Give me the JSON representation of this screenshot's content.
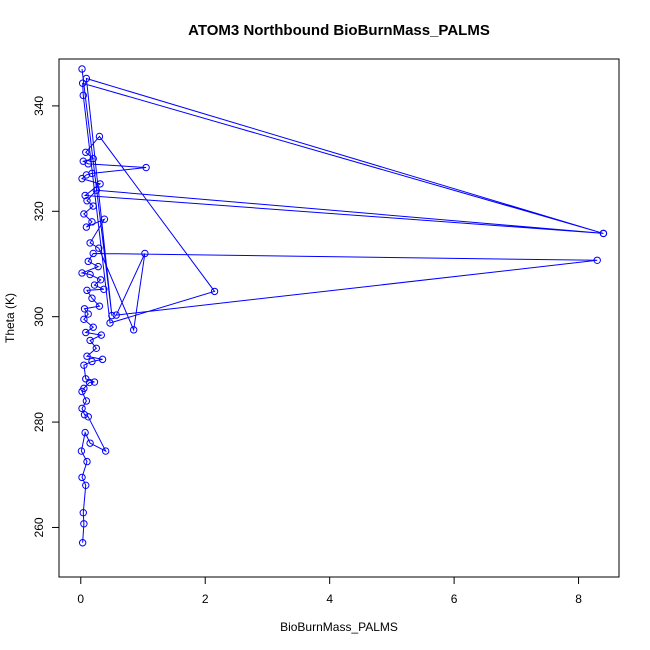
{
  "chart_data": {
    "type": "line",
    "title": "ATOM3 Northbound BioBurnMass_PALMS",
    "xlabel": "BioBurnMass_PALMS",
    "ylabel": "Theta (K)",
    "xlim": [
      -0.35,
      8.65
    ],
    "ylim": [
      250.6,
      348.9
    ],
    "xticks": [
      0,
      2,
      4,
      6,
      8
    ],
    "yticks": [
      260,
      280,
      300,
      320,
      340
    ],
    "grid": false,
    "legend": "none",
    "series": [
      {
        "color": "#0000ff",
        "marker": "open-circle",
        "points": [
          [
            0.03,
            257.1
          ],
          [
            0.05,
            260.7
          ],
          [
            0.04,
            262.8
          ],
          [
            0.08,
            268.0
          ],
          [
            0.02,
            269.5
          ],
          [
            0.1,
            272.5
          ],
          [
            0.01,
            274.5
          ],
          [
            0.07,
            278.0
          ],
          [
            0.15,
            276.0
          ],
          [
            0.4,
            274.5
          ],
          [
            0.12,
            281.0
          ],
          [
            0.06,
            281.4
          ],
          [
            0.02,
            282.6
          ],
          [
            0.09,
            284.0
          ],
          [
            0.02,
            285.8
          ],
          [
            0.05,
            286.4
          ],
          [
            0.14,
            287.5
          ],
          [
            0.22,
            287.6
          ],
          [
            0.08,
            288.2
          ],
          [
            0.05,
            290.8
          ],
          [
            0.18,
            291.5
          ],
          [
            0.35,
            291.9
          ],
          [
            0.1,
            292.5
          ],
          [
            0.25,
            294.0
          ],
          [
            0.15,
            295.5
          ],
          [
            0.33,
            296.5
          ],
          [
            0.08,
            297.0
          ],
          [
            0.2,
            298.0
          ],
          [
            0.05,
            299.5
          ],
          [
            0.12,
            300.5
          ],
          [
            0.06,
            301.5
          ],
          [
            0.3,
            302.0
          ],
          [
            0.18,
            303.5
          ],
          [
            0.1,
            305.0
          ],
          [
            0.37,
            305.2
          ],
          [
            0.22,
            306.0
          ],
          [
            0.32,
            307.0
          ],
          [
            0.15,
            308.0
          ],
          [
            0.02,
            308.3
          ],
          [
            0.28,
            309.5
          ],
          [
            0.12,
            310.5
          ],
          [
            0.2,
            312.0
          ],
          [
            8.3,
            310.7
          ],
          [
            0.57,
            300.3
          ],
          [
            1.03,
            312.0
          ],
          [
            0.85,
            297.5
          ],
          [
            0.29,
            313.0
          ],
          [
            0.15,
            314.0
          ],
          [
            0.38,
            318.5
          ],
          [
            0.09,
            317.0
          ],
          [
            0.18,
            318.0
          ],
          [
            0.05,
            319.5
          ],
          [
            0.2,
            321.0
          ],
          [
            0.1,
            322.0
          ],
          [
            0.25,
            324.0
          ],
          [
            8.4,
            315.8
          ],
          [
            0.07,
            323.0
          ],
          [
            0.31,
            325.2
          ],
          [
            0.02,
            326.2
          ],
          [
            0.09,
            326.9
          ],
          [
            0.18,
            327.2
          ],
          [
            1.05,
            328.3
          ],
          [
            0.12,
            329.0
          ],
          [
            0.04,
            329.5
          ],
          [
            0.2,
            330.0
          ],
          [
            0.08,
            331.2
          ],
          [
            0.3,
            334.2
          ],
          [
            2.15,
            304.8
          ],
          [
            0.47,
            298.8
          ],
          [
            0.04,
            342.0
          ],
          [
            0.03,
            344.3
          ],
          [
            8.4,
            315.8
          ],
          [
            0.09,
            345.2
          ],
          [
            0.5,
            300.2
          ],
          [
            0.02,
            347.0
          ]
        ]
      }
    ]
  }
}
